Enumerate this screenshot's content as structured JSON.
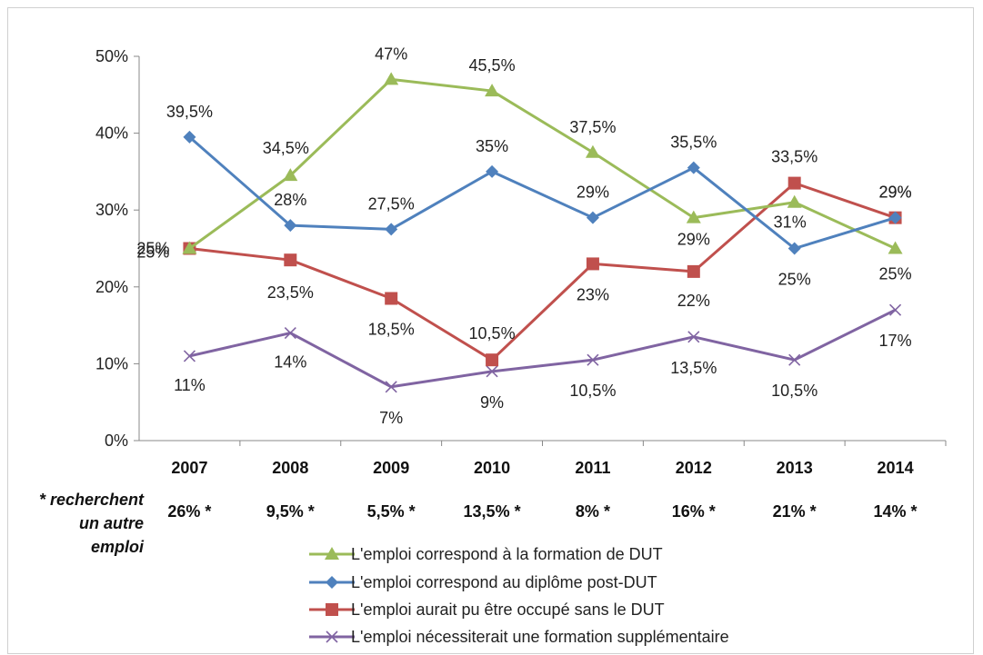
{
  "chart_data": {
    "type": "line",
    "x": [
      "2007",
      "2008",
      "2009",
      "2010",
      "2011",
      "2012",
      "2013",
      "2014"
    ],
    "ylim": [
      0,
      50
    ],
    "yticks": [
      "0%",
      "10%",
      "20%",
      "30%",
      "40%",
      "50%"
    ],
    "grid": false,
    "legend_position": "bottom",
    "series": [
      {
        "name": "L'emploi correspond à la formation de DUT",
        "color": "#9bbb59",
        "marker": "triangle",
        "values": [
          25,
          34.5,
          47,
          45.5,
          37.5,
          29,
          31,
          25
        ],
        "labels": [
          "25%",
          "34,5%",
          "47%",
          "45,5%",
          "37,5%",
          "29%",
          "31%",
          "25%"
        ]
      },
      {
        "name": "L'emploi correspond au diplôme post-DUT",
        "color": "#4f81bd",
        "marker": "diamond",
        "values": [
          39.5,
          28,
          27.5,
          35,
          29,
          35.5,
          25,
          29
        ],
        "labels": [
          "39,5%",
          "28%",
          "27,5%",
          "35%",
          "29%",
          "35,5%",
          "25%",
          "29%"
        ]
      },
      {
        "name": "L'emploi aurait pu être occupé sans le DUT",
        "color": "#c0504d",
        "marker": "square",
        "values": [
          25,
          23.5,
          18.5,
          10.5,
          23,
          22,
          33.5,
          29
        ],
        "labels": [
          "25%",
          "23,5%",
          "18,5%",
          "10,5%",
          "23%",
          "22%",
          "33,5%",
          "29%"
        ]
      },
      {
        "name": "L'emploi nécessiterait une formation supplémentaire",
        "color": "#8064a2",
        "marker": "x",
        "values": [
          11,
          14,
          7,
          9,
          10.5,
          13.5,
          10.5,
          17
        ],
        "labels": [
          "11%",
          "14%",
          "7%",
          "9%",
          "10,5%",
          "13,5%",
          "10,5%",
          "17%"
        ]
      }
    ],
    "extra_row": {
      "note_lines": [
        "* recherchent",
        "un autre",
        "emploi"
      ],
      "values": [
        "26% *",
        "9,5% *",
        "5,5% *",
        "13,5% *",
        "8% *",
        "16% *",
        "21% *",
        "14% *"
      ]
    }
  }
}
